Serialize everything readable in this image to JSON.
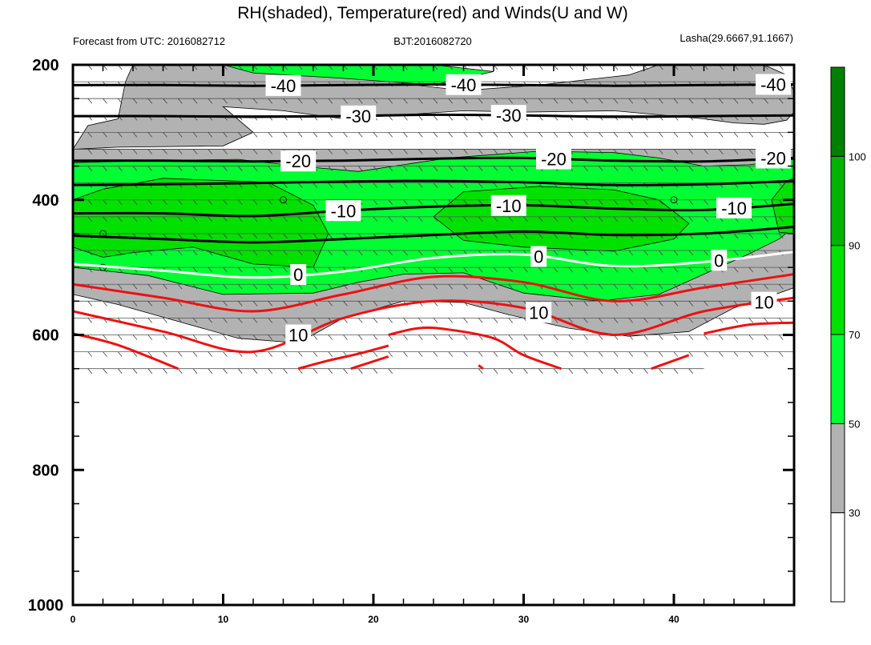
{
  "chart_data": {
    "type": "cross-section",
    "title": "RH(shaded), Temperature(red) and Winds(U and W)",
    "subtitle_left": "Forecast from UTC: 2016082712",
    "subtitle_center": "BJT:2016082720",
    "subtitle_right": "Lasha(29.6667,91.1667)",
    "x_ticks": [
      "0",
      "10",
      "20",
      "30",
      "40"
    ],
    "y_ticks": [
      "200",
      "400",
      "600",
      "800",
      "1000"
    ],
    "xlim": [
      0,
      48
    ],
    "ylim": [
      1000,
      200
    ],
    "colorbar": {
      "labels": [
        "30",
        "50",
        "70",
        "90",
        "100"
      ],
      "bins": [
        {
          "range": "0-30",
          "color": "#ffffff"
        },
        {
          "range": "30-50",
          "color": "#b2b2b2"
        },
        {
          "range": "50-70",
          "color": "#00ff32"
        },
        {
          "range": "70-90",
          "color": "#00e100"
        },
        {
          "range": "90-100",
          "color": "#00b400"
        },
        {
          "range": "100+",
          "color": "#008000"
        }
      ]
    },
    "temperature_lines": [
      {
        "label": "-40",
        "color": "#000000",
        "x": [
          0,
          6,
          12,
          18,
          24,
          30,
          36,
          42,
          48
        ],
        "y": [
          230,
          230,
          231,
          230,
          229,
          230,
          231,
          230,
          229
        ]
      },
      {
        "label": "-30",
        "color": "#000000",
        "x": [
          0,
          6,
          12,
          18,
          24,
          30,
          36,
          42,
          48
        ],
        "y": [
          276,
          276,
          277,
          276,
          274,
          275,
          277,
          276,
          275
        ]
      },
      {
        "label": "-20",
        "color": "#000000",
        "x": [
          0,
          6,
          12,
          18,
          24,
          30,
          36,
          42,
          48
        ],
        "y": [
          342,
          342,
          343,
          342,
          339,
          338,
          342,
          343,
          338
        ]
      },
      {
        "label": "",
        "color": "#000000",
        "x": [
          0,
          6,
          12,
          18,
          24,
          30,
          36,
          42,
          48
        ],
        "y": [
          378,
          377,
          375,
          373,
          372,
          374,
          378,
          377,
          372
        ]
      },
      {
        "label": "-10",
        "color": "#000000",
        "x": [
          0,
          6,
          12,
          18,
          24,
          30,
          36,
          42,
          48
        ],
        "y": [
          420,
          420,
          424,
          416,
          410,
          408,
          413,
          415,
          406
        ]
      },
      {
        "label": "",
        "color": "#000000",
        "x": [
          0,
          6,
          12,
          18,
          24,
          30,
          36,
          42,
          48
        ],
        "y": [
          453,
          458,
          463,
          458,
          452,
          447,
          452,
          450,
          440
        ]
      },
      {
        "label": "0",
        "color": "#ffffff",
        "x": [
          0,
          6,
          12,
          18,
          24,
          30,
          36,
          42,
          48
        ],
        "y": [
          495,
          505,
          515,
          506,
          486,
          481,
          498,
          492,
          477
        ]
      },
      {
        "label": "",
        "color": "#ee1111",
        "x": [
          0,
          6,
          12,
          18,
          24,
          30,
          36,
          42,
          48
        ],
        "y": [
          525,
          545,
          565,
          540,
          514,
          522,
          550,
          530,
          510
        ]
      },
      {
        "label": "10",
        "color": "#ee1111",
        "x": [
          0,
          6,
          12,
          18,
          24,
          30,
          36,
          42,
          48
        ],
        "y": [
          565,
          595,
          625,
          575,
          550,
          560,
          600,
          565,
          545
        ]
      },
      {
        "label": "",
        "color": "#ee1111",
        "x": [
          0,
          3,
          7
        ],
        "y": [
          598,
          615,
          650
        ]
      },
      {
        "label": "",
        "color": "#ee1111",
        "x": [
          15,
          17,
          19,
          21
        ],
        "y": [
          650,
          638,
          628,
          616
        ]
      },
      {
        "label": "",
        "color": "#ee1111",
        "x": [
          18.5,
          21
        ],
        "y": [
          650,
          632
        ]
      },
      {
        "label": "",
        "color": "#ee1111",
        "x": [
          21,
          23,
          25,
          28,
          30,
          32.5
        ],
        "y": [
          600,
          590,
          592,
          605,
          630,
          650
        ]
      },
      {
        "label": "",
        "color": "#ee1111",
        "x": [
          27,
          27.3
        ],
        "y": [
          645,
          650
        ]
      },
      {
        "label": "",
        "color": "#ee1111",
        "x": [
          38.5,
          41
        ],
        "y": [
          650,
          630
        ]
      },
      {
        "label": "",
        "color": "#ee1111",
        "x": [
          42,
          45,
          48
        ],
        "y": [
          598,
          585,
          582
        ]
      }
    ]
  }
}
